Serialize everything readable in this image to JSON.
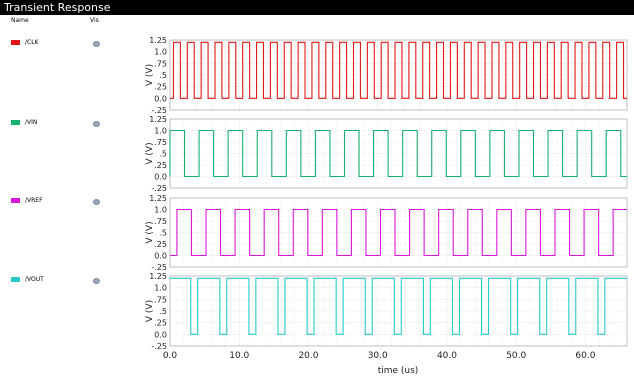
{
  "window": {
    "title": "Transient Response"
  },
  "legend": {
    "name_header": "Name",
    "vis_header": "Vis",
    "signals": [
      {
        "label": "/CLK",
        "color": "#e01818",
        "vis_icon": "eye-icon"
      },
      {
        "label": "/VIN",
        "color": "#18b070",
        "vis_icon": "eye-icon"
      },
      {
        "label": "/VREF",
        "color": "#d818d8",
        "vis_icon": "eye-icon"
      },
      {
        "label": "/VOUT",
        "color": "#28c8c8",
        "vis_icon": "eye-icon"
      }
    ]
  },
  "chart_data": {
    "type": "line",
    "xlabel": "time (us)",
    "xlim": [
      0,
      66
    ],
    "x_ticks": [
      "0.0",
      "10.0",
      "20.0",
      "30.0",
      "40.0",
      "50.0",
      "60.0"
    ],
    "ylabel": "V (V)",
    "ylim": [
      -0.25,
      1.25
    ],
    "y_ticks": [
      "1.25",
      "1.0",
      ".75",
      ".5",
      ".25",
      "0.0",
      "-.25"
    ],
    "grid": true,
    "series": [
      {
        "name": "/CLK",
        "waveform": "square",
        "period_us": 2.0,
        "low": 0.0,
        "high": 1.2,
        "start_level": "low",
        "first_edge_us": 0.5
      },
      {
        "name": "/VIN",
        "waveform": "square",
        "period_us": 4.2,
        "low": 0.0,
        "high": 1.0,
        "start_level": "low",
        "first_edge_us": 0.0
      },
      {
        "name": "/VREF",
        "waveform": "square",
        "period_us": 4.2,
        "low": 0.0,
        "high": 1.0,
        "start_level": "low",
        "first_edge_us": 1.0
      },
      {
        "name": "/VOUT",
        "waveform": "pulse",
        "period_us": 4.2,
        "low": 0.0,
        "high": 1.2,
        "start_level": "high",
        "first_low_start_us": 3.0,
        "low_width_us": 1.0
      }
    ]
  }
}
